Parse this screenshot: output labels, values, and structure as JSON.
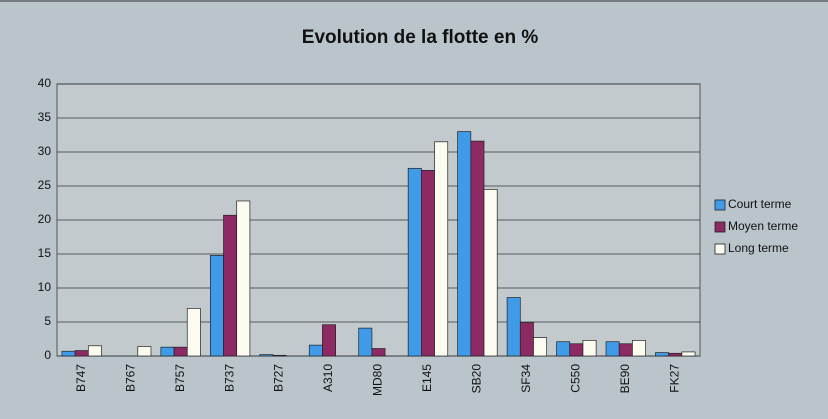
{
  "chart_data": {
    "type": "bar",
    "title": "Evolution de la flotte en %",
    "categories": [
      "B747",
      "B767",
      "B757",
      "B737",
      "B727",
      "A310",
      "MD80",
      "E145",
      "SB20",
      "SF34",
      "C550",
      "BE90",
      "FK27"
    ],
    "series": [
      {
        "name": "Court terme",
        "color": "#3f9be8",
        "values": [
          0.7,
          0,
          1.3,
          14.8,
          0.2,
          1.6,
          4.1,
          27.6,
          33.0,
          8.6,
          2.1,
          2.1,
          0.5
        ]
      },
      {
        "name": "Moyen terme",
        "color": "#8e2a63",
        "values": [
          0.8,
          0,
          1.3,
          20.7,
          0.1,
          4.6,
          1.1,
          27.3,
          31.6,
          4.9,
          1.8,
          1.8,
          0.4
        ]
      },
      {
        "name": "Long terme",
        "color": "#fbfbef",
        "values": [
          1.5,
          1.4,
          7.0,
          22.8,
          0,
          0,
          0,
          31.5,
          24.5,
          2.7,
          2.3,
          2.3,
          0.6
        ]
      }
    ],
    "ylim": [
      0,
      40
    ],
    "yticks": [
      0,
      5,
      10,
      15,
      20,
      25,
      30,
      35,
      40
    ],
    "grid": true,
    "legend": "right"
  }
}
